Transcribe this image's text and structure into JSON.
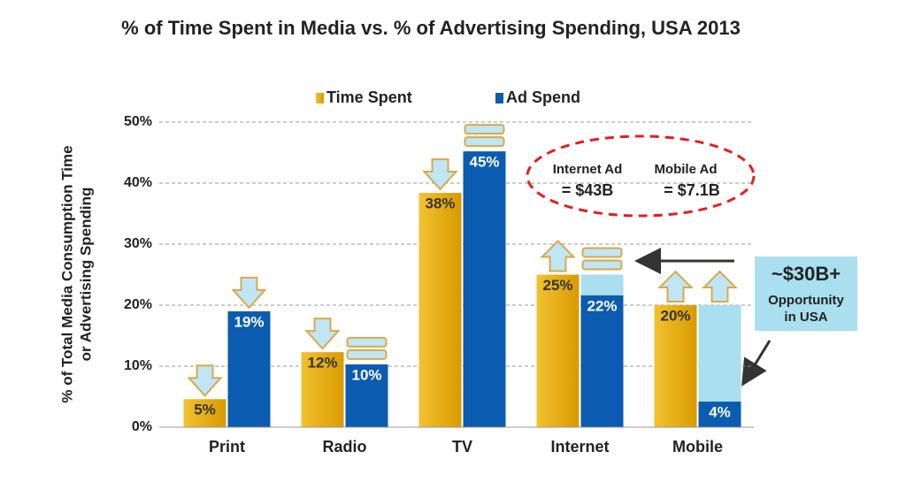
{
  "chart_data": {
    "type": "bar",
    "title": "% of Time Spent in Media vs. % of Advertising Spending, USA 2013",
    "y_label": [
      "% of Total Media Consumption Time",
      "or Advertising Spending"
    ],
    "categories": [
      "Print",
      "Radio",
      "TV",
      "Internet",
      "Mobile"
    ],
    "series": [
      {
        "name": "Time Spent",
        "color": "#e6a700",
        "values": [
          4.6,
          12.3,
          38.4,
          25,
          20
        ],
        "value_labels": [
          "5%",
          "12%",
          "38%",
          "25%",
          "20%"
        ]
      },
      {
        "name": "Ad Spend",
        "color": "#0b5cb0",
        "values": [
          19,
          10.3,
          45.2,
          21.6,
          4.2
        ],
        "value_labels": [
          "19%",
          "10%",
          "45%",
          "22%",
          "4%"
        ]
      }
    ],
    "ylim": [
      0,
      50
    ],
    "yticks": [
      {
        "value": 0,
        "label": "0%"
      },
      {
        "value": 10,
        "label": "10%"
      },
      {
        "value": 20,
        "label": "20%"
      },
      {
        "value": 30,
        "label": "30%"
      },
      {
        "value": 40,
        "label": "40%"
      },
      {
        "value": 50,
        "label": "50%"
      }
    ],
    "grid": true,
    "annotations": {
      "internet_ad": [
        "Internet Ad",
        "= $43B"
      ],
      "mobile_ad": [
        "Mobile Ad",
        "= $7.1B"
      ],
      "opportunity": [
        "~$30B+",
        "Opportunity",
        "in USA"
      ]
    }
  }
}
